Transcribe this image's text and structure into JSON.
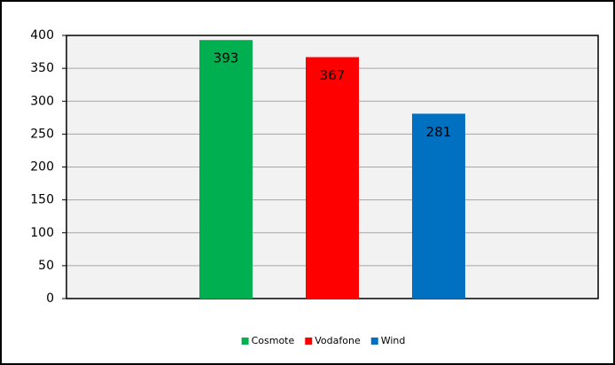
{
  "chart_data": {
    "type": "bar",
    "categories": [
      null
    ],
    "series": [
      {
        "name": "Cosmote",
        "color": "#00b050",
        "values": [
          393
        ]
      },
      {
        "name": "Vodafone",
        "color": "#ff0000",
        "values": [
          367
        ]
      },
      {
        "name": "Wind",
        "color": "#0070c0",
        "values": [
          281
        ]
      }
    ],
    "ylim": [
      0,
      400
    ],
    "yticks": [
      0,
      50,
      100,
      150,
      200,
      250,
      300,
      350,
      400
    ],
    "grid": true,
    "legend": "bottom",
    "data_labels": true,
    "plot_background": "#f2f2f2"
  }
}
